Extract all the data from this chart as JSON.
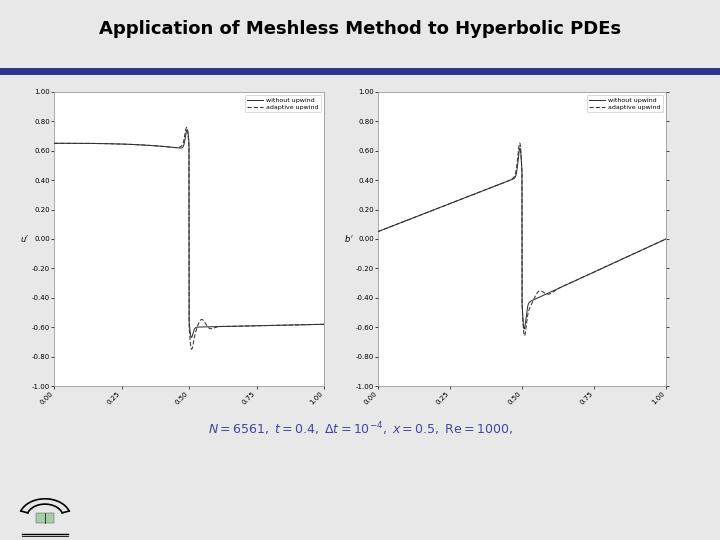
{
  "title": "Application of Meshless Method to Hyperbolic PDEs",
  "title_color": "#000000",
  "title_fontsize": 13,
  "header_bar_color": "#2d3490",
  "footer_bar_color": "#2d3490",
  "slide_bg": "#e8e8e8",
  "plot_bg": "#ffffff",
  "subtitle": "$N = 6561,\\; t = 0.4,\\; \\Delta t = 10^{-4},\\; x = 0.5,\\; \\mathrm{Re}= 1000,$",
  "left_ylabel": "$u'$",
  "right_ylabel": "$b'$",
  "xlim": [
    0.0,
    1.0
  ],
  "ylim": [
    -1.0,
    1.0
  ],
  "legend1_solid": "without upwind",
  "legend1_dash": "adaptive upwind",
  "legend2_solid": "without upwind",
  "legend2_dash": "adaptive upwind",
  "line_color": "#333333",
  "yticks": [
    -1.0,
    -0.8,
    -0.6,
    -0.4,
    -0.2,
    0.0,
    0.2,
    0.4,
    0.6,
    0.8,
    1.0
  ],
  "xticks": [
    0.0,
    0.25,
    0.5,
    0.75,
    1.0
  ],
  "subtitle_color": "#4444aa"
}
